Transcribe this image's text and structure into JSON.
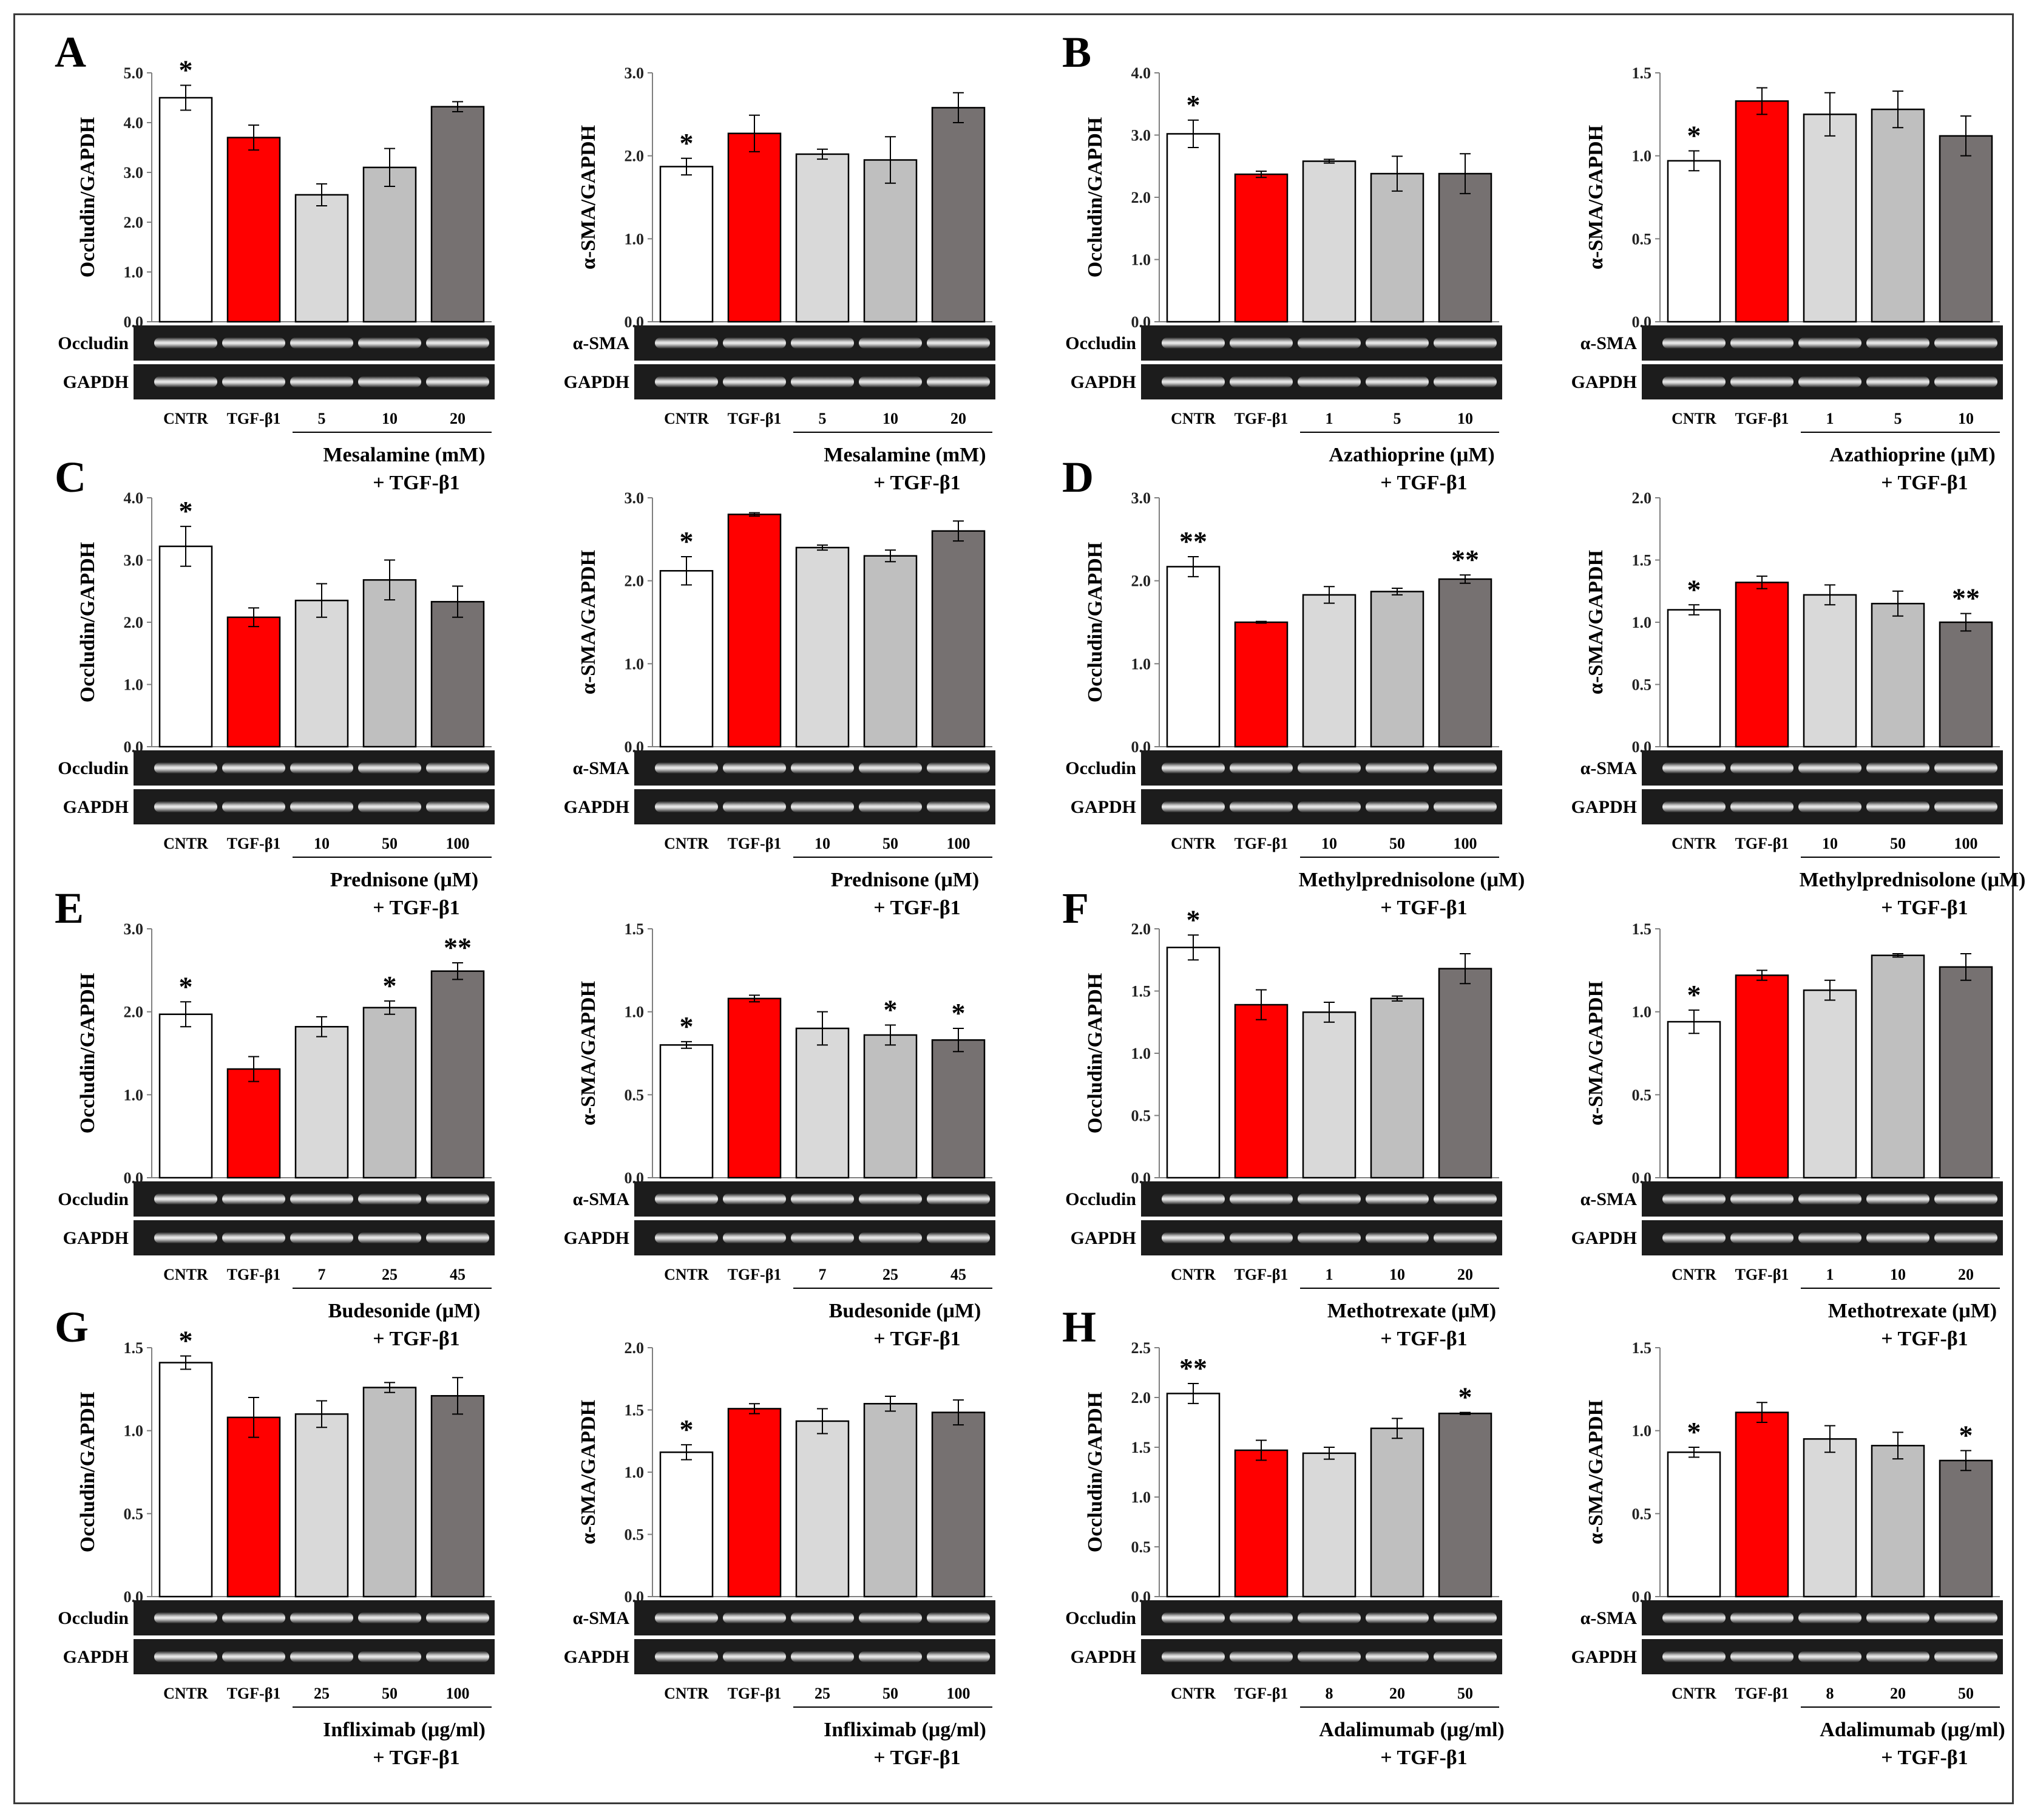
{
  "figure": {
    "caption_hidden": false,
    "categories_common": [
      "CNTR",
      "TGF-β1"
    ],
    "treatment_suffix": "+ TGF-β1",
    "loading_control": "GAPDH",
    "bar_colors": [
      "#ffffff",
      "#ff0000",
      "#d9d9d9",
      "#bfbfbf",
      "#767171"
    ]
  },
  "panels": [
    {
      "letter": "A",
      "treatment": "Mesalamine (mM)",
      "doses": [
        "5",
        "10",
        "20"
      ]
    },
    {
      "letter": "B",
      "treatment": "Azathioprine (μM)",
      "doses": [
        "1",
        "5",
        "10"
      ]
    },
    {
      "letter": "C",
      "treatment": "Prednisone (μM)",
      "doses": [
        "10",
        "50",
        "100"
      ]
    },
    {
      "letter": "D",
      "treatment": "Methylprednisolone (μM)",
      "doses": [
        "10",
        "50",
        "100"
      ]
    },
    {
      "letter": "E",
      "treatment": "Budesonide (μM)",
      "doses": [
        "7",
        "25",
        "45"
      ]
    },
    {
      "letter": "F",
      "treatment": "Methotrexate (μM)",
      "doses": [
        "1",
        "10",
        "20"
      ]
    },
    {
      "letter": "G",
      "treatment": "Infliximab (μg/ml)",
      "doses": [
        "25",
        "50",
        "100"
      ]
    },
    {
      "letter": "H",
      "treatment": "Adalimumab (μg/ml)",
      "doses": [
        "8",
        "20",
        "50"
      ]
    }
  ],
  "chart_data": [
    {
      "type": "bar",
      "panel": "A",
      "ylabel": "Occludin/GAPDH",
      "blot_label": "Occludin",
      "categories": [
        "CNTR",
        "TGF-β1",
        "5",
        "10",
        "20"
      ],
      "xlabel": "Mesalamine (mM) + TGF-β1",
      "values": [
        4.5,
        3.7,
        2.55,
        3.1,
        4.32
      ],
      "errors": [
        0.25,
        0.25,
        0.22,
        0.38,
        0.1
      ],
      "significance": [
        "*",
        "",
        "",
        "",
        ""
      ],
      "ylim": [
        0,
        5
      ],
      "yticks": [
        "0.0",
        "1.0",
        "2.0",
        "3.0",
        "4.0",
        "5.0"
      ]
    },
    {
      "type": "bar",
      "panel": "A",
      "ylabel": "α-SMA/GAPDH",
      "blot_label": "α-SMA",
      "categories": [
        "CNTR",
        "TGF-β1",
        "5",
        "10",
        "20"
      ],
      "xlabel": "Mesalamine (mM) + TGF-β1",
      "values": [
        1.87,
        2.27,
        2.02,
        1.95,
        2.58
      ],
      "errors": [
        0.1,
        0.22,
        0.06,
        0.28,
        0.18
      ],
      "significance": [
        "*",
        "",
        "",
        "",
        ""
      ],
      "ylim": [
        0,
        3
      ],
      "yticks": [
        "0.0",
        "1.0",
        "2.0",
        "3.0"
      ]
    },
    {
      "type": "bar",
      "panel": "B",
      "ylabel": "Occludin/GAPDH",
      "blot_label": "Occludin",
      "categories": [
        "CNTR",
        "TGF-β1",
        "1",
        "5",
        "10"
      ],
      "xlabel": "Azathioprine (μM) + TGF-β1",
      "values": [
        3.02,
        2.37,
        2.58,
        2.38,
        2.38
      ],
      "errors": [
        0.22,
        0.05,
        0.03,
        0.28,
        0.32
      ],
      "significance": [
        "*",
        "",
        "",
        "",
        ""
      ],
      "ylim": [
        0,
        4
      ],
      "yticks": [
        "0.0",
        "1.0",
        "2.0",
        "3.0",
        "4.0"
      ]
    },
    {
      "type": "bar",
      "panel": "B",
      "ylabel": "α-SMA/GAPDH",
      "blot_label": "α-SMA",
      "categories": [
        "CNTR",
        "TGF-β1",
        "1",
        "5",
        "10"
      ],
      "xlabel": "Azathioprine (μM) + TGF-β1",
      "values": [
        0.97,
        1.33,
        1.25,
        1.28,
        1.12
      ],
      "errors": [
        0.06,
        0.08,
        0.13,
        0.11,
        0.12
      ],
      "significance": [
        "*",
        "",
        "",
        "",
        ""
      ],
      "ylim": [
        0,
        1.5
      ],
      "yticks": [
        "0.0",
        "0.5",
        "1.0",
        "1.5"
      ]
    },
    {
      "type": "bar",
      "panel": "C",
      "ylabel": "Occludin/GAPDH",
      "blot_label": "Occludin",
      "categories": [
        "CNTR",
        "TGF-β1",
        "10",
        "50",
        "100"
      ],
      "xlabel": "Prednisone (μM) + TGF-β1",
      "values": [
        3.22,
        2.08,
        2.35,
        2.68,
        2.33
      ],
      "errors": [
        0.32,
        0.15,
        0.27,
        0.32,
        0.25
      ],
      "significance": [
        "*",
        "",
        "",
        "",
        ""
      ],
      "ylim": [
        0,
        4
      ],
      "yticks": [
        "0.0",
        "1.0",
        "2.0",
        "3.0",
        "4.0"
      ]
    },
    {
      "type": "bar",
      "panel": "C",
      "ylabel": "α-SMA/GAPDH",
      "blot_label": "α-SMA",
      "categories": [
        "CNTR",
        "TGF-β1",
        "10",
        "50",
        "100"
      ],
      "xlabel": "Prednisone (μM) + TGF-β1",
      "values": [
        2.12,
        2.8,
        2.4,
        2.3,
        2.6
      ],
      "errors": [
        0.17,
        0.02,
        0.03,
        0.07,
        0.12
      ],
      "significance": [
        "*",
        "",
        "",
        "",
        ""
      ],
      "ylim": [
        0,
        3
      ],
      "yticks": [
        "0.0",
        "1.0",
        "2.0",
        "3.0"
      ]
    },
    {
      "type": "bar",
      "panel": "D",
      "ylabel": "Occludin/GAPDH",
      "blot_label": "Occludin",
      "categories": [
        "CNTR",
        "TGF-β1",
        "10",
        "50",
        "100"
      ],
      "xlabel": "Methylprednisolone (μM) + TGF-β1",
      "values": [
        2.17,
        1.5,
        1.83,
        1.87,
        2.02
      ],
      "errors": [
        0.12,
        0.01,
        0.1,
        0.04,
        0.05
      ],
      "significance": [
        "**",
        "",
        "",
        "",
        "**"
      ],
      "ylim": [
        0,
        3
      ],
      "yticks": [
        "0.0",
        "1.0",
        "2.0",
        "3.0"
      ]
    },
    {
      "type": "bar",
      "panel": "D",
      "ylabel": "α-SMA/GAPDH",
      "blot_label": "α-SMA",
      "categories": [
        "CNTR",
        "TGF-β1",
        "10",
        "50",
        "100"
      ],
      "xlabel": "Methylprednisolone (μM) + TGF-β1",
      "values": [
        1.1,
        1.32,
        1.22,
        1.15,
        1.0
      ],
      "errors": [
        0.04,
        0.05,
        0.08,
        0.1,
        0.07
      ],
      "significance": [
        "*",
        "",
        "",
        "",
        "**"
      ],
      "ylim": [
        0,
        2
      ],
      "yticks": [
        "0.0",
        "0.5",
        "1.0",
        "1.5",
        "2.0"
      ]
    },
    {
      "type": "bar",
      "panel": "E",
      "ylabel": "Occludin/GAPDH",
      "blot_label": "Occludin",
      "categories": [
        "CNTR",
        "TGF-β1",
        "7",
        "25",
        "45"
      ],
      "xlabel": "Budesonide (μM) + TGF-β1",
      "values": [
        1.97,
        1.31,
        1.82,
        2.05,
        2.49
      ],
      "errors": [
        0.15,
        0.15,
        0.12,
        0.08,
        0.1
      ],
      "significance": [
        "*",
        "",
        "",
        "*",
        "**"
      ],
      "ylim": [
        0,
        3
      ],
      "yticks": [
        "0.0",
        "1.0",
        "2.0",
        "3.0"
      ]
    },
    {
      "type": "bar",
      "panel": "E",
      "ylabel": "α-SMA/GAPDH",
      "blot_label": "α-SMA",
      "categories": [
        "CNTR",
        "TGF-β1",
        "7",
        "25",
        "45"
      ],
      "xlabel": "Budesonide (μM) + TGF-β1",
      "values": [
        0.8,
        1.08,
        0.9,
        0.86,
        0.83
      ],
      "errors": [
        0.02,
        0.02,
        0.1,
        0.06,
        0.07
      ],
      "significance": [
        "*",
        "",
        "",
        "*",
        "*"
      ],
      "ylim": [
        0,
        1.5
      ],
      "yticks": [
        "0.0",
        "0.5",
        "1.0",
        "1.5"
      ]
    },
    {
      "type": "bar",
      "panel": "F",
      "ylabel": "Occludin/GAPDH",
      "blot_label": "Occludin",
      "categories": [
        "CNTR",
        "TGF-β1",
        "1",
        "10",
        "20"
      ],
      "xlabel": "Methotrexate (μM) + TGF-β1",
      "values": [
        1.85,
        1.39,
        1.33,
        1.44,
        1.68
      ],
      "errors": [
        0.1,
        0.12,
        0.08,
        0.02,
        0.12
      ],
      "significance": [
        "*",
        "",
        "",
        "",
        ""
      ],
      "ylim": [
        0,
        2
      ],
      "yticks": [
        "0.0",
        "0.5",
        "1.0",
        "1.5",
        "2.0"
      ]
    },
    {
      "type": "bar",
      "panel": "F",
      "ylabel": "α-SMA/GAPDH",
      "blot_label": "α-SMA",
      "categories": [
        "CNTR",
        "TGF-β1",
        "1",
        "10",
        "20"
      ],
      "xlabel": "Methotrexate (μM) + TGF-β1",
      "values": [
        0.94,
        1.22,
        1.13,
        1.34,
        1.27
      ],
      "errors": [
        0.07,
        0.03,
        0.06,
        0.01,
        0.08
      ],
      "significance": [
        "*",
        "",
        "",
        "",
        ""
      ],
      "ylim": [
        0,
        1.5
      ],
      "yticks": [
        "0.0",
        "0.5",
        "1.0",
        "1.5"
      ]
    },
    {
      "type": "bar",
      "panel": "G",
      "ylabel": "Occludin/GAPDH",
      "blot_label": "Occludin",
      "categories": [
        "CNTR",
        "TGF-β1",
        "25",
        "50",
        "100"
      ],
      "xlabel": "Infliximab (μg/ml) + TGF-β1",
      "values": [
        1.41,
        1.08,
        1.1,
        1.26,
        1.21
      ],
      "errors": [
        0.04,
        0.12,
        0.08,
        0.03,
        0.11
      ],
      "significance": [
        "*",
        "",
        "",
        "",
        ""
      ],
      "ylim": [
        0,
        1.5
      ],
      "yticks": [
        "0.0",
        "0.5",
        "1.0",
        "1.5"
      ]
    },
    {
      "type": "bar",
      "panel": "G",
      "ylabel": "α-SMA/GAPDH",
      "blot_label": "α-SMA",
      "categories": [
        "CNTR",
        "TGF-β1",
        "25",
        "50",
        "100"
      ],
      "xlabel": "Infliximab (μg/ml) + TGF-β1",
      "values": [
        1.16,
        1.51,
        1.41,
        1.55,
        1.48
      ],
      "errors": [
        0.06,
        0.04,
        0.1,
        0.06,
        0.1
      ],
      "significance": [
        "*",
        "",
        "",
        "",
        ""
      ],
      "ylim": [
        0,
        2
      ],
      "yticks": [
        "0.0",
        "0.5",
        "1.0",
        "1.5",
        "2.0"
      ]
    },
    {
      "type": "bar",
      "panel": "H",
      "ylabel": "Occludin/GAPDH",
      "blot_label": "Occludin",
      "categories": [
        "CNTR",
        "TGF-β1",
        "8",
        "20",
        "50"
      ],
      "xlabel": "Adalimumab (μg/ml) + TGF-β1",
      "values": [
        2.04,
        1.47,
        1.44,
        1.69,
        1.84
      ],
      "errors": [
        0.1,
        0.1,
        0.06,
        0.1,
        0.01
      ],
      "significance": [
        "**",
        "",
        "",
        "",
        "*"
      ],
      "ylim": [
        0,
        2.5
      ],
      "yticks": [
        "0.0",
        "0.5",
        "1.0",
        "1.5",
        "2.0",
        "2.5"
      ]
    },
    {
      "type": "bar",
      "panel": "H",
      "ylabel": "α-SMA/GAPDH",
      "blot_label": "α-SMA",
      "categories": [
        "CNTR",
        "TGF-β1",
        "8",
        "20",
        "50"
      ],
      "xlabel": "Adalimumab (μg/ml) + TGF-β1",
      "values": [
        0.87,
        1.11,
        0.95,
        0.91,
        0.82
      ],
      "errors": [
        0.03,
        0.06,
        0.08,
        0.08,
        0.06
      ],
      "significance": [
        "*",
        "",
        "",
        "",
        "*"
      ],
      "ylim": [
        0,
        1.5
      ],
      "yticks": [
        "0.0",
        "0.5",
        "1.0",
        "1.5"
      ]
    }
  ]
}
